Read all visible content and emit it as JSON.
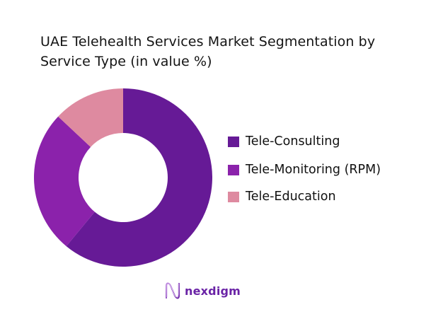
{
  "title": {
    "line1": "UAE Telehealth Services Market Segmentation by",
    "line2": "Service Type (in value %)"
  },
  "legend": {
    "items": [
      {
        "label": "Tele-Consulting",
        "color": "#661a96"
      },
      {
        "label": "Tele-Monitoring (RPM)",
        "color": "#8b22ab"
      },
      {
        "label": "Tele-Education",
        "color": "#de8aa0"
      }
    ]
  },
  "logo": {
    "text": "nexdigm",
    "icon": "nexdigm-wave-icon"
  },
  "chart_data": {
    "type": "pie",
    "variant": "donut",
    "title": "UAE Telehealth Services Market Segmentation by Service Type (in value %)",
    "categories": [
      "Tele-Consulting",
      "Tele-Monitoring (RPM)",
      "Tele-Education"
    ],
    "values": [
      61,
      26,
      13
    ],
    "colors": [
      "#661a96",
      "#8b22ab",
      "#de8aa0"
    ],
    "start_angle": "top (12 o'clock), clockwise",
    "legend_position": "right",
    "data_labels": false
  }
}
